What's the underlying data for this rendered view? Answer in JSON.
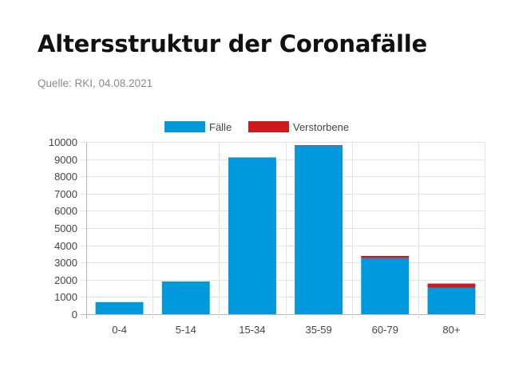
{
  "header": {
    "title": "Altersstruktur der Coronafälle",
    "source": "Quelle: RKI, 04.08.2021"
  },
  "colors": {
    "faelle": "#0099dd",
    "verstorbene": "#d0181e",
    "grid": "#e3e3e3",
    "axis": "#b8b8b8",
    "text": "#444444"
  },
  "chart_data": {
    "type": "bar",
    "stacked": true,
    "categories": [
      "0-4",
      "5-14",
      "15-34",
      "35-59",
      "60-79",
      "80+"
    ],
    "series": [
      {
        "name": "Fälle",
        "values": [
          700,
          1900,
          9100,
          9800,
          3250,
          1550
        ]
      },
      {
        "name": "Verstorbene",
        "values": [
          0,
          0,
          0,
          10,
          130,
          230
        ]
      }
    ],
    "yticks": [
      "0",
      "1000",
      "2000",
      "3000",
      "4000",
      "5000",
      "6000",
      "7000",
      "8000",
      "9000",
      "10000"
    ],
    "ylim": [
      0,
      10000
    ],
    "grid": true,
    "legend": "top-center"
  }
}
